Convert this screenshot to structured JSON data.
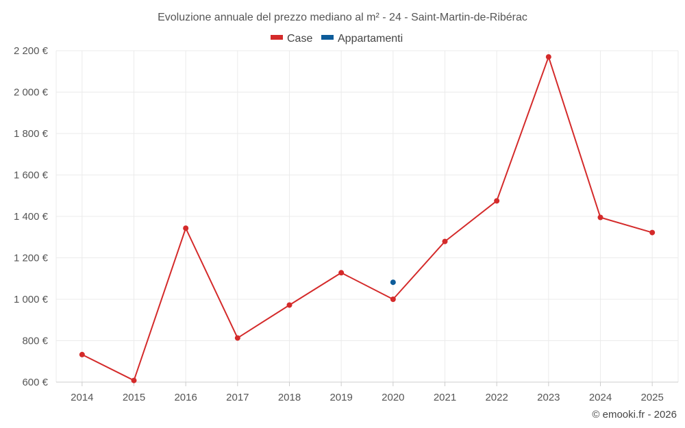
{
  "chart_data": {
    "type": "line",
    "title": "Evoluzione annuale del prezzo mediano al m² - 24 - Saint-Martin-de-Ribérac",
    "categories": [
      "2014",
      "2015",
      "2016",
      "2017",
      "2018",
      "2019",
      "2020",
      "2021",
      "2022",
      "2023",
      "2024",
      "2025"
    ],
    "series": [
      {
        "name": "Case",
        "color": "#d42a2a",
        "values": [
          733,
          608,
          1343,
          813,
          972,
          1128,
          1000,
          1279,
          1475,
          2170,
          1395,
          1322
        ]
      },
      {
        "name": "Appartamenti",
        "color": "#0d5c9a",
        "values": [
          null,
          null,
          null,
          null,
          null,
          null,
          1082,
          null,
          null,
          null,
          null,
          null
        ]
      }
    ],
    "ylim": [
      600,
      2200
    ],
    "yticks": [
      600,
      800,
      1000,
      1200,
      1400,
      1600,
      1800,
      2000,
      2200
    ],
    "ytick_labels": [
      "600 €",
      "800 €",
      "1 000 €",
      "1 200 €",
      "1 400 €",
      "1 600 €",
      "1 800 €",
      "2 000 €",
      "2 200 €"
    ],
    "grid": true,
    "legend_position": "top-center"
  },
  "credit": "© emooki.fr - 2026"
}
